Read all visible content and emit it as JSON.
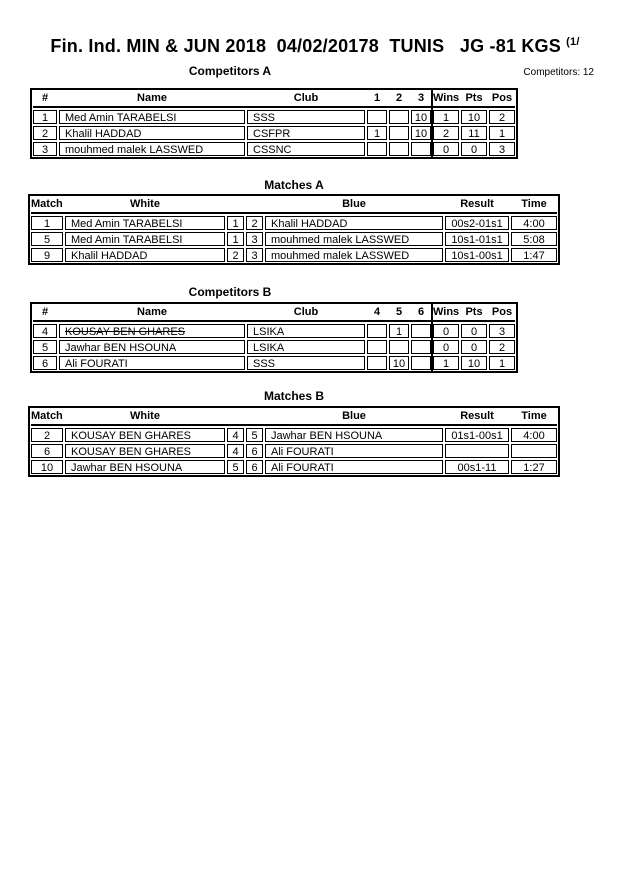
{
  "page": {
    "title": "Fin. Ind. MIN & JUN 2018  04/02/20178  TUNIS   JG -81 KGS ",
    "title_superscript": "(1/",
    "competitors_count_label": "Competitors: 12"
  },
  "colors": {
    "text": "#000000",
    "background": "#ffffff",
    "border": "#000000"
  },
  "tables": {
    "competitors_a": {
      "heading": "Competitors A",
      "headers": [
        "#",
        "Name",
        "Club",
        "1",
        "2",
        "3",
        "Wins",
        "Pts",
        "Pos"
      ],
      "rows": [
        {
          "cells": [
            "1",
            "Med Amin TARABELSI",
            "SSS",
            "",
            "",
            "10",
            "1",
            "10",
            "2"
          ],
          "strike_name": false
        },
        {
          "cells": [
            "2",
            "Khalil HADDAD",
            "CSFPR",
            "1",
            "",
            "10",
            "2",
            "11",
            "1"
          ],
          "strike_name": false
        },
        {
          "cells": [
            "3",
            "mouhmed malek LASSWED",
            "CSSNC",
            "",
            "",
            "",
            "0",
            "0",
            "3"
          ],
          "strike_name": false
        }
      ]
    },
    "matches_a": {
      "heading": "Matches A",
      "headers": [
        "Match",
        "White",
        "",
        "",
        "Blue",
        "Result",
        "Time"
      ],
      "rows": [
        {
          "cells": [
            "1",
            "Med Amin TARABELSI",
            "1",
            "2",
            "Khalil HADDAD",
            "00s2-01s1",
            "4:00"
          ],
          "strike_name": false
        },
        {
          "cells": [
            "5",
            "Med Amin TARABELSI",
            "1",
            "3",
            "mouhmed malek LASSWED",
            "10s1-01s1",
            "5:08"
          ],
          "strike_name": false
        },
        {
          "cells": [
            "9",
            "Khalil HADDAD",
            "2",
            "3",
            "mouhmed malek LASSWED",
            "10s1-00s1",
            "1:47"
          ],
          "strike_name": false
        }
      ]
    },
    "competitors_b": {
      "heading": "Competitors B",
      "headers": [
        "#",
        "Name",
        "Club",
        "4",
        "5",
        "6",
        "Wins",
        "Pts",
        "Pos"
      ],
      "rows": [
        {
          "cells": [
            "4",
            "KOUSAY BEN GHARES",
            "LSIKA",
            "",
            "1",
            "",
            "0",
            "0",
            "3"
          ],
          "strike_name": true
        },
        {
          "cells": [
            "5",
            "Jawhar BEN HSOUNA",
            "LSIKA",
            "",
            "",
            "",
            "0",
            "0",
            "2"
          ],
          "strike_name": false
        },
        {
          "cells": [
            "6",
            "Ali FOURATI",
            "SSS",
            "",
            "10",
            "",
            "1",
            "10",
            "1"
          ],
          "strike_name": false
        }
      ]
    },
    "matches_b": {
      "heading": "Matches B",
      "headers": [
        "Match",
        "White",
        "",
        "",
        "Blue",
        "Result",
        "Time"
      ],
      "rows": [
        {
          "cells": [
            "2",
            "KOUSAY BEN GHARES",
            "4",
            "5",
            "Jawhar BEN HSOUNA",
            "01s1-00s1",
            "4:00"
          ],
          "strike_name": false
        },
        {
          "cells": [
            "6",
            "KOUSAY BEN GHARES",
            "4",
            "6",
            "Ali FOURATI",
            "",
            ""
          ],
          "strike_name": false
        },
        {
          "cells": [
            "10",
            "Jawhar BEN HSOUNA",
            "5",
            "6",
            "Ali FOURATI",
            "00s1-11",
            "1:27"
          ],
          "strike_name": false
        }
      ]
    }
  }
}
